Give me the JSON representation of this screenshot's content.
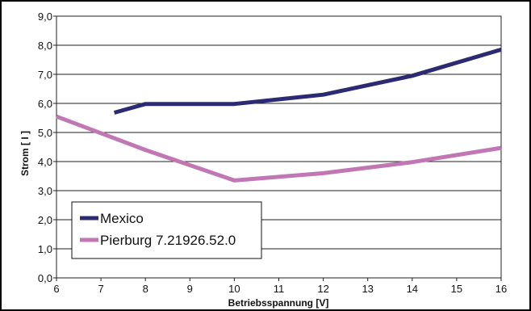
{
  "chart_data": {
    "type": "line",
    "xlabel": "Betriebsspannung [V]",
    "ylabel": "Strom [ I ]",
    "xlim": [
      6,
      16
    ],
    "ylim": [
      0,
      9
    ],
    "x_ticks": [
      "6",
      "7",
      "8",
      "9",
      "10",
      "11",
      "12",
      "13",
      "14",
      "15",
      "16"
    ],
    "y_ticks": [
      "0,0",
      "1,0",
      "2,0",
      "3,0",
      "4,0",
      "5,0",
      "6,0",
      "7,0",
      "8,0",
      "9,0"
    ],
    "grid": "horizontal",
    "legend_position": "bottom-left",
    "series": [
      {
        "name": "Mexico",
        "color": "#2b2a72",
        "points": [
          [
            7.3,
            5.68
          ],
          [
            8,
            5.98
          ],
          [
            10,
            5.98
          ],
          [
            12,
            6.3
          ],
          [
            14,
            6.95
          ],
          [
            16,
            7.85
          ]
        ]
      },
      {
        "name": "Pierburg 7.21926.52.0",
        "color": "#c077b4",
        "points": [
          [
            6,
            5.55
          ],
          [
            8,
            4.4
          ],
          [
            10,
            3.35
          ],
          [
            12,
            3.6
          ],
          [
            14,
            3.98
          ],
          [
            16,
            4.47
          ]
        ]
      }
    ]
  }
}
